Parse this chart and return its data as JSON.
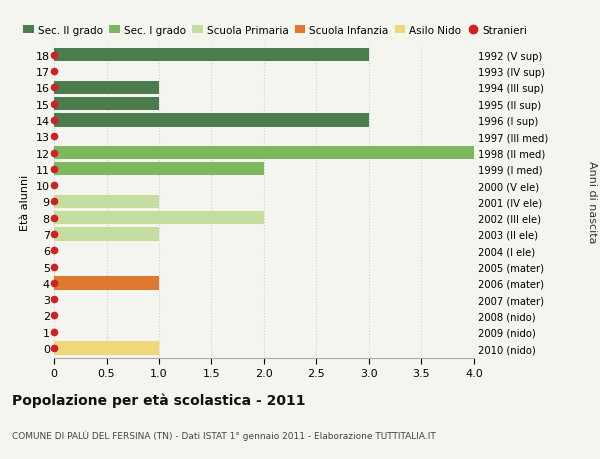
{
  "ages": [
    18,
    17,
    16,
    15,
    14,
    13,
    12,
    11,
    10,
    9,
    8,
    7,
    6,
    5,
    4,
    3,
    2,
    1,
    0
  ],
  "years": [
    "1992 (V sup)",
    "1993 (IV sup)",
    "1994 (III sup)",
    "1995 (II sup)",
    "1996 (I sup)",
    "1997 (III med)",
    "1998 (II med)",
    "1999 (I med)",
    "2000 (V ele)",
    "2001 (IV ele)",
    "2002 (III ele)",
    "2003 (II ele)",
    "2004 (I ele)",
    "2005 (mater)",
    "2006 (mater)",
    "2007 (mater)",
    "2008 (nido)",
    "2009 (nido)",
    "2010 (nido)"
  ],
  "bar_values": [
    3,
    0,
    1,
    1,
    3,
    0,
    4,
    2,
    0,
    1,
    2,
    1,
    0,
    0,
    1,
    0,
    0,
    0,
    1
  ],
  "bar_colors": [
    "#4a7c4e",
    "#4a7c4e",
    "#4a7c4e",
    "#4a7c4e",
    "#4a7c4e",
    "#7db85e",
    "#7db85e",
    "#7db85e",
    "#c5dea0",
    "#c5dea0",
    "#c5dea0",
    "#c5dea0",
    "#c5dea0",
    "#e07830",
    "#e07830",
    "#e07830",
    "#f0d878",
    "#f0d878",
    "#f0d878"
  ],
  "stranieri_color": "#cc2222",
  "legend_labels": [
    "Sec. II grado",
    "Sec. I grado",
    "Scuola Primaria",
    "Scuola Infanzia",
    "Asilo Nido",
    "Stranieri"
  ],
  "legend_colors": [
    "#4a7c4e",
    "#7db85e",
    "#c5dea0",
    "#e07830",
    "#f0d878",
    "#cc2222"
  ],
  "title": "Popolazione per età scolastica - 2011",
  "subtitle": "COMUNE DI PALÙ DEL FERSINA (TN) - Dati ISTAT 1° gennaio 2011 - Elaborazione TUTTITALIA.IT",
  "ylabel_left": "Età alunni",
  "ylabel_right": "Anni di nascita",
  "xlim": [
    0,
    4.0
  ],
  "background_color": "#f5f5f0",
  "grid_color": "#d0d0d0",
  "bar_height": 0.82
}
